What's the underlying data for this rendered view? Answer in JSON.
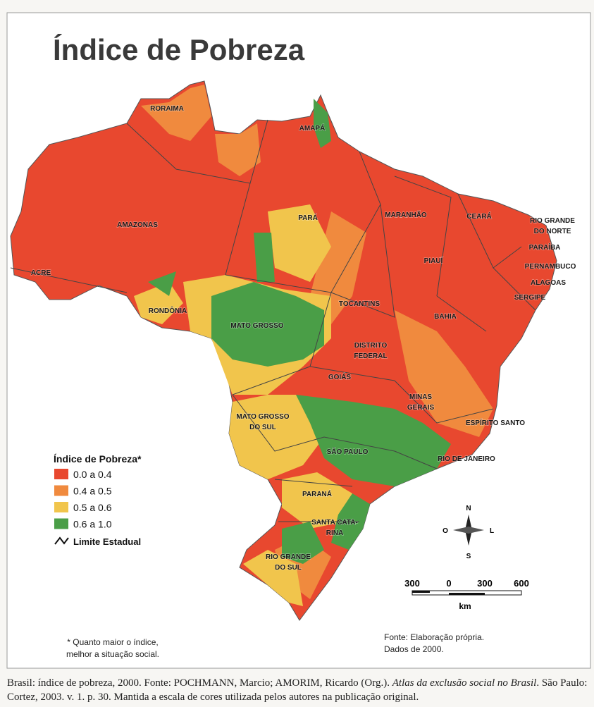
{
  "title": "Índice de Pobreza",
  "states": [
    [
      "RORAIMA"
    ],
    [
      "AMAPÁ"
    ],
    [
      "AMAZONAS"
    ],
    [
      "PARÁ"
    ],
    [
      "MARANHÃO"
    ],
    [
      "CEARÁ"
    ],
    [
      "RIO GRANDE",
      "DO NORTE"
    ],
    [
      "PARAÍBA"
    ],
    [
      "PIAUÍ"
    ],
    [
      "PERNAMBUCO"
    ],
    [
      "ALAGOAS"
    ],
    [
      "SERGIPE"
    ],
    [
      "ACRE"
    ],
    [
      "RONDÔNIA"
    ],
    [
      "TOCANTINS"
    ],
    [
      "BAHIA"
    ],
    [
      "MATO GROSSO"
    ],
    [
      "DISTRITO",
      "FEDERAL"
    ],
    [
      "GOIÁS"
    ],
    [
      "MINAS",
      "GERAIS"
    ],
    [
      "ESPÍRITO SANTO"
    ],
    [
      "MATO GROSSO",
      "DO SUL"
    ],
    [
      "SÃO PAULO"
    ],
    [
      "RIO DE JANEIRO"
    ],
    [
      "PARANÁ"
    ],
    [
      "SANTA CATA-",
      "RINA"
    ],
    [
      "RIO GRANDE",
      "DO SUL"
    ]
  ],
  "legend": {
    "title": "Índice de Pobreza*",
    "items": [
      {
        "label": "0.0 a 0.4",
        "color": "#e8482f"
      },
      {
        "label": "0.4 a 0.5",
        "color": "#f08a3e"
      },
      {
        "label": "0.5 a 0.6",
        "color": "#f1c54c"
      },
      {
        "label": "0.6 a 1.0",
        "color": "#4a9e47"
      }
    ],
    "boundary": "Limite Estadual"
  },
  "compass": {
    "north": "N",
    "south": "S",
    "west": "O",
    "east": "L"
  },
  "scale": {
    "ticks": [
      "300",
      "0",
      "300",
      "600"
    ],
    "unit": "km"
  },
  "note": [
    "* Quanto maior o índice,",
    "melhor a situação social."
  ],
  "source": [
    "Fonte: Elaboração própria.",
    "Dados de 2000."
  ],
  "caption": [
    "Brasil: índice de pobreza, 2000. Fonte: POCHMANN, Marcio; AMORIM, Ricardo (Org.). ",
    "Atlas da exclusão social no Brasil",
    ". São Paulo: Cortez, 2003. v. 1. p. 30. Mantida a escala de cores utilizada pelos autores na publicação original."
  ]
}
